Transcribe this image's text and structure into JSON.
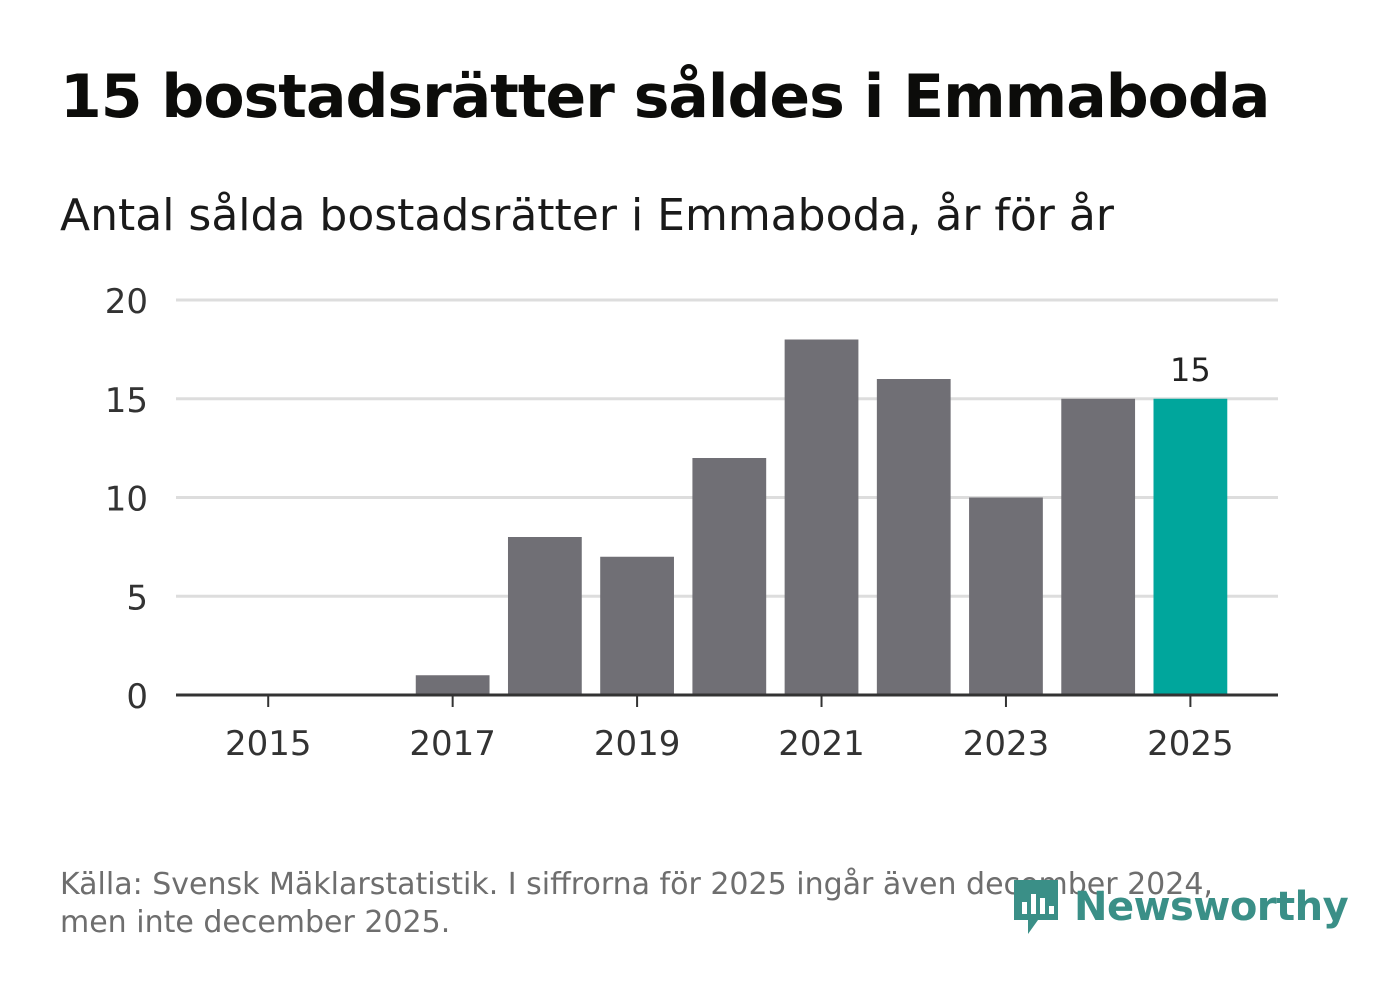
{
  "header": {
    "title": "15 bostadsrätter såldes i Emmaboda",
    "subtitle": "Antal sålda bostadsrätter i Emmaboda, år för år"
  },
  "footer": {
    "source_line1": "Källa: Svensk Mäklarstatistik. I siffrorna för 2025 ingår även december 2024,",
    "source_line2": "men inte december 2025."
  },
  "brand": {
    "name": "Newsworthy"
  },
  "colors": {
    "bar": "#706f75",
    "highlight": "#00a69c",
    "grid": "#dddddd",
    "axis": "#333333",
    "brand": "#3a8f87"
  },
  "chart_data": {
    "type": "bar",
    "categories": [
      "2015",
      "2016",
      "2017",
      "2018",
      "2019",
      "2020",
      "2021",
      "2022",
      "2023",
      "2024",
      "2025"
    ],
    "values": [
      0,
      0,
      1,
      8,
      7,
      12,
      18,
      16,
      10,
      15,
      15
    ],
    "x_tick_labels": [
      "2015",
      "2017",
      "2019",
      "2021",
      "2023",
      "2025"
    ],
    "y_ticks": [
      0,
      5,
      10,
      15,
      20
    ],
    "ylim": [
      0,
      20
    ],
    "highlight_index": 10,
    "data_labels": [
      {
        "index": 10,
        "text": "15"
      }
    ],
    "grid": true,
    "xlabel": "",
    "ylabel": ""
  }
}
